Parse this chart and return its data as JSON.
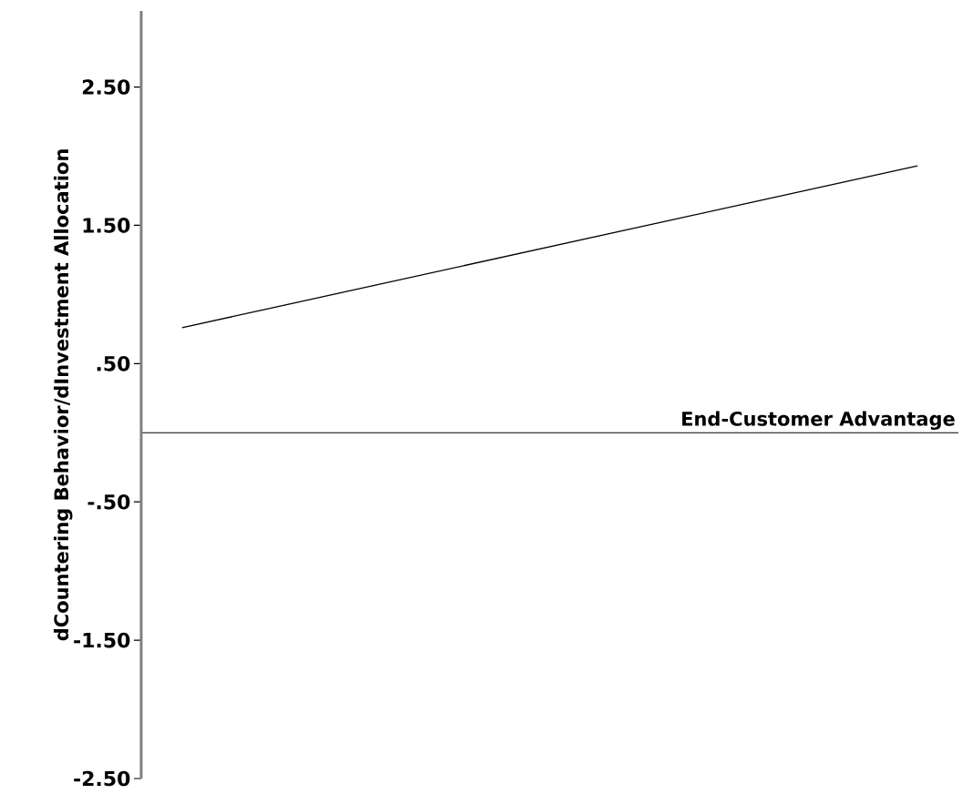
{
  "chart_data": {
    "type": "line",
    "xlabel": "End-Customer Advantage",
    "ylabel": "dCountering Behavior/dInvestment Allocation",
    "categories": [
      null,
      null,
      null,
      null,
      null,
      null,
      null,
      null,
      null,
      null
    ],
    "values": [
      0.76,
      0.89,
      1.02,
      1.15,
      1.28,
      1.41,
      1.54,
      1.67,
      1.8,
      1.93
    ],
    "color": "#000000",
    "ylim": [
      -2.5,
      3.05
    ],
    "yticks": [
      {
        "value": -2.5,
        "label": "-2.50"
      },
      {
        "value": -1.5,
        "label": "-1.50"
      },
      {
        "value": -0.5,
        "label": "-.50"
      },
      {
        "value": 0.5,
        "label": ".50"
      },
      {
        "value": 1.5,
        "label": "1.50"
      },
      {
        "value": 2.5,
        "label": "2.50"
      }
    ],
    "grid": false,
    "marker": "none",
    "line_style": "solid"
  }
}
